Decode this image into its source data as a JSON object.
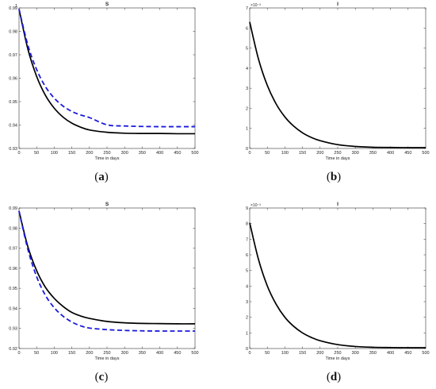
{
  "chart_data": [
    {
      "type": "line",
      "panel_label": "a",
      "title": "S",
      "xlabel": "Time in days",
      "ylabel": "",
      "xlim": [
        0,
        500
      ],
      "ylim": [
        0.93,
        0.99
      ],
      "xticks": [
        0,
        50,
        100,
        150,
        200,
        250,
        300,
        350,
        400,
        450,
        500
      ],
      "yticks": [
        0.93,
        0.94,
        0.95,
        0.96,
        0.97,
        0.98,
        0.99
      ],
      "ytick_labels": [
        "0.93",
        "0.94",
        "0.95",
        "0.96",
        "0.97",
        "0.98",
        "0.99"
      ],
      "y_top_extra_label": "1",
      "exponent_label": "",
      "series": [
        {
          "style": "solid",
          "color": "#000000",
          "x": [
            0,
            25,
            50,
            75,
            100,
            125,
            150,
            175,
            200,
            250,
            300,
            350,
            400,
            450,
            500
          ],
          "y": [
            0.9895,
            0.9725,
            0.9608,
            0.9527,
            0.9472,
            0.9434,
            0.9408,
            0.9391,
            0.9379,
            0.9369,
            0.9365,
            0.9364,
            0.9364,
            0.9363,
            0.9363
          ]
        },
        {
          "style": "dashed",
          "color": "#1a1adc",
          "x": [
            0,
            25,
            50,
            75,
            100,
            125,
            150,
            175,
            200,
            250,
            300,
            350,
            400,
            450,
            500
          ],
          "y": [
            0.9895,
            0.9742,
            0.9637,
            0.9564,
            0.9515,
            0.9481,
            0.9458,
            0.9443,
            0.9432,
            0.9401,
            0.9396,
            0.9394,
            0.9393,
            0.9393,
            0.9393
          ]
        }
      ]
    },
    {
      "type": "line",
      "panel_label": "b",
      "title": "I",
      "xlabel": "Time in days",
      "ylabel": "",
      "xlim": [
        0,
        500
      ],
      "ylim": [
        0,
        7
      ],
      "xticks": [
        0,
        50,
        100,
        150,
        200,
        250,
        300,
        350,
        400,
        450,
        500
      ],
      "yticks": [
        0,
        1,
        2,
        3,
        4,
        5,
        6,
        7
      ],
      "ytick_labels": [
        "0",
        "1",
        "2",
        "3",
        "4",
        "5",
        "6",
        "7"
      ],
      "y_top_extra_label": "",
      "exponent_label": "×10⁻³",
      "series": [
        {
          "style": "solid",
          "color": "#000000",
          "x": [
            0,
            25,
            50,
            75,
            100,
            125,
            150,
            175,
            200,
            250,
            300,
            350,
            400,
            450,
            500
          ],
          "y": [
            6.3,
            4.45,
            3.14,
            2.22,
            1.57,
            1.11,
            0.78,
            0.55,
            0.39,
            0.19,
            0.1,
            0.06,
            0.05,
            0.04,
            0.04
          ]
        }
      ]
    },
    {
      "type": "line",
      "panel_label": "c",
      "title": "S",
      "xlabel": "Time in days",
      "ylabel": "",
      "xlim": [
        0,
        500
      ],
      "ylim": [
        0.92,
        0.99
      ],
      "xticks": [
        0,
        50,
        100,
        150,
        200,
        250,
        300,
        350,
        400,
        450,
        500
      ],
      "yticks": [
        0.92,
        0.93,
        0.94,
        0.95,
        0.96,
        0.97,
        0.98,
        0.99
      ],
      "ytick_labels": [
        "0.92",
        "0.93",
        "0.94",
        "0.95",
        "0.96",
        "0.97",
        "0.98",
        "0.99"
      ],
      "y_top_extra_label": "",
      "exponent_label": "",
      "series": [
        {
          "style": "solid",
          "color": "#000000",
          "x": [
            0,
            25,
            50,
            75,
            100,
            125,
            150,
            175,
            200,
            250,
            300,
            350,
            400,
            450,
            500
          ],
          "y": [
            0.9885,
            0.9708,
            0.9588,
            0.9505,
            0.945,
            0.941,
            0.938,
            0.9362,
            0.935,
            0.9335,
            0.9328,
            0.9325,
            0.9324,
            0.9323,
            0.9323
          ]
        },
        {
          "style": "dashed",
          "color": "#1a1adc",
          "x": [
            0,
            25,
            50,
            75,
            100,
            125,
            150,
            175,
            200,
            250,
            300,
            350,
            400,
            450,
            500
          ],
          "y": [
            0.9885,
            0.9695,
            0.9558,
            0.9465,
            0.9403,
            0.9361,
            0.9332,
            0.9313,
            0.9302,
            0.9294,
            0.929,
            0.9288,
            0.9287,
            0.9287,
            0.9287
          ]
        }
      ]
    },
    {
      "type": "line",
      "panel_label": "d",
      "title": "I",
      "xlabel": "Time in days",
      "ylabel": "",
      "xlim": [
        0,
        500
      ],
      "ylim": [
        0,
        9
      ],
      "xticks": [
        0,
        50,
        100,
        150,
        200,
        250,
        300,
        350,
        400,
        450,
        500
      ],
      "yticks": [
        0,
        1,
        2,
        3,
        4,
        5,
        6,
        7,
        8,
        9
      ],
      "ytick_labels": [
        "0",
        "1",
        "2",
        "3",
        "4",
        "5",
        "6",
        "7",
        "8",
        "9"
      ],
      "y_top_extra_label": "",
      "exponent_label": "×10⁻³",
      "series": [
        {
          "style": "solid",
          "color": "#000000",
          "x": [
            0,
            25,
            50,
            75,
            100,
            125,
            150,
            175,
            200,
            250,
            300,
            350,
            400,
            450,
            500
          ],
          "y": [
            8.05,
            5.7,
            4.01,
            2.84,
            2.0,
            1.42,
            1.0,
            0.71,
            0.5,
            0.25,
            0.13,
            0.08,
            0.06,
            0.05,
            0.05
          ]
        }
      ]
    }
  ],
  "captions": [
    "(a)",
    "(b)",
    "(c)",
    "(d)"
  ]
}
